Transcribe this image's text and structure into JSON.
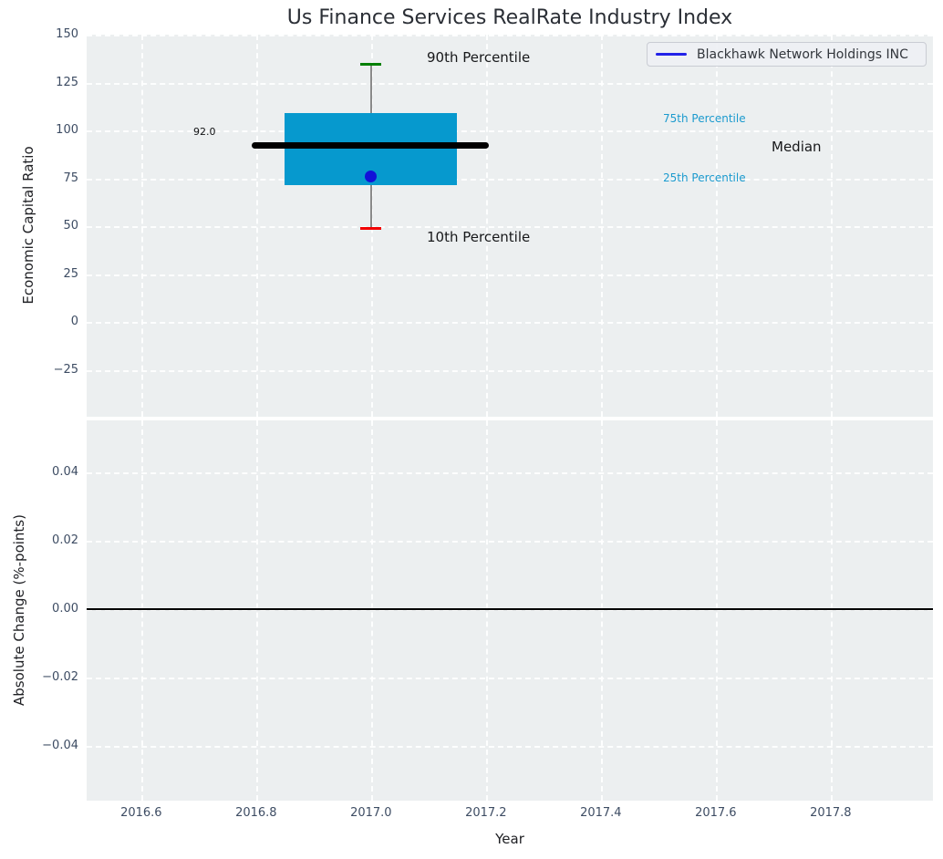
{
  "title": "Us Finance Services RealRate Industry Index",
  "legend": {
    "label": "Blackhawk Network Holdings INC"
  },
  "annotations": {
    "p90": "90th Percentile",
    "p75": "75th Percentile",
    "median": "Median",
    "p25": "25th Percentile",
    "p10": "10th Percentile",
    "median_value": "92.0"
  },
  "axes": {
    "top": {
      "ylabel": "Economic Capital Ratio"
    },
    "bottom": {
      "ylabel": "Absolute Change (%-points)",
      "xlabel": "Year"
    }
  },
  "colors": {
    "box_fill": "#0699ce",
    "median_line": "#000000",
    "p90_cap": "#008000",
    "p10_cap": "#f20000",
    "whisker": "#8a8a8a",
    "company_marker": "#1212d8",
    "legend_line": "#2222e8",
    "percentile_label": "#1b9ace",
    "plot_bg": "#eceff0",
    "tick_label": "#3d4c63",
    "zero_line": "#000000"
  },
  "chart_data": [
    {
      "type": "box",
      "title": "Us Finance Services RealRate Industry Index",
      "ylabel": "Economic Capital Ratio",
      "xlabel": "",
      "ylim": [
        -49.5,
        150
      ],
      "xlim": [
        2016.505,
        2017.978
      ],
      "grid": true,
      "legend_position": "upper right",
      "yticks": [
        150,
        125,
        100,
        75,
        50,
        25,
        0,
        -25
      ],
      "ytick_labels": [
        "150",
        "125",
        "100",
        "75",
        "50",
        "25",
        "0",
        "−25"
      ],
      "xticks": [
        2016.6,
        2016.8,
        2017.0,
        2017.2,
        2017.4,
        2017.6,
        2017.8
      ],
      "xtick_labels": [
        "2016.6",
        "2016.8",
        "2017.0",
        "2017.2",
        "2017.4",
        "2017.6",
        "2017.8"
      ],
      "series": [
        {
          "name": "Blackhawk Network Holdings INC",
          "x": 2017.0,
          "p90": 134.5,
          "p75": 109,
          "median": 92,
          "p25": 71.5,
          "p10": 49,
          "company_value": 76,
          "box_x0": 2016.85,
          "box_x1": 2017.15,
          "median_x0": 2016.793,
          "median_x1": 2017.205
        }
      ]
    },
    {
      "type": "line",
      "ylabel": "Absolute Change (%-points)",
      "xlabel": "Year",
      "ylim": [
        -0.056,
        0.0552
      ],
      "xlim": [
        2016.505,
        2017.978
      ],
      "grid": true,
      "zero_line": 0.0,
      "yticks": [
        0.04,
        0.02,
        0.0,
        -0.02,
        -0.04
      ],
      "ytick_labels": [
        "0.04",
        "0.02",
        "0.00",
        "−0.02",
        "−0.04"
      ],
      "xticks": [
        2016.6,
        2016.8,
        2017.0,
        2017.2,
        2017.4,
        2017.6,
        2017.8
      ],
      "xtick_labels": [
        "2016.6",
        "2016.8",
        "2017.0",
        "2017.2",
        "2017.4",
        "2017.6",
        "2017.8"
      ],
      "series": []
    }
  ]
}
